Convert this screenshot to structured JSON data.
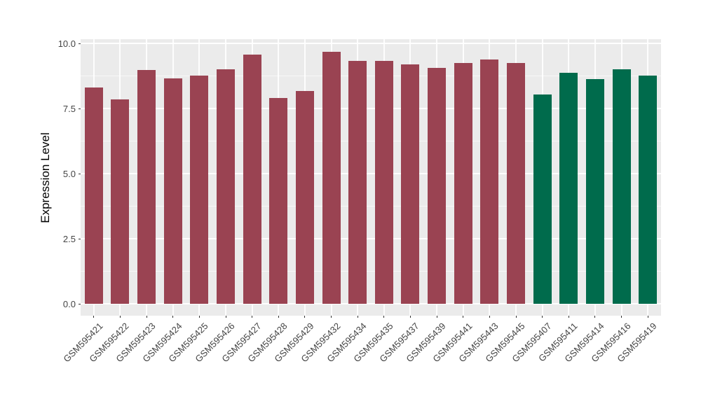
{
  "chart_data": {
    "type": "bar",
    "title": "",
    "xlabel": "",
    "ylabel": "Expression Level",
    "ytick_labels": [
      "0.0",
      "2.5",
      "5.0",
      "7.5",
      "10.0"
    ],
    "ytick_values": [
      0,
      2.5,
      5,
      7.5,
      10
    ],
    "ylim": [
      -0.48,
      10.16
    ],
    "grid": {
      "horizontal_major": true,
      "horizontal_minor": true,
      "vertical_at_categories": true,
      "panel_background": "#EBEBEB",
      "gridline_color": "#FFFFFF"
    },
    "legend": "none",
    "bars": [
      {
        "label": "GSM595421",
        "value": 8.3,
        "group": "group1"
      },
      {
        "label": "GSM595422",
        "value": 7.85,
        "group": "group1"
      },
      {
        "label": "GSM595423",
        "value": 8.97,
        "group": "group1"
      },
      {
        "label": "GSM595424",
        "value": 8.65,
        "group": "group1"
      },
      {
        "label": "GSM595425",
        "value": 8.77,
        "group": "group1"
      },
      {
        "label": "GSM595426",
        "value": 9.0,
        "group": "group1"
      },
      {
        "label": "GSM595427",
        "value": 9.57,
        "group": "group1"
      },
      {
        "label": "GSM595428",
        "value": 7.9,
        "group": "group1"
      },
      {
        "label": "GSM595429",
        "value": 8.17,
        "group": "group1"
      },
      {
        "label": "GSM595432",
        "value": 9.67,
        "group": "group1"
      },
      {
        "label": "GSM595434",
        "value": 9.32,
        "group": "group1"
      },
      {
        "label": "GSM595435",
        "value": 9.32,
        "group": "group1"
      },
      {
        "label": "GSM595437",
        "value": 9.19,
        "group": "group1"
      },
      {
        "label": "GSM595439",
        "value": 9.06,
        "group": "group1"
      },
      {
        "label": "GSM595441",
        "value": 9.25,
        "group": "group1"
      },
      {
        "label": "GSM595443",
        "value": 9.37,
        "group": "group1"
      },
      {
        "label": "GSM595445",
        "value": 9.26,
        "group": "group1"
      },
      {
        "label": "GSM595407",
        "value": 8.04,
        "group": "group2"
      },
      {
        "label": "GSM595411",
        "value": 8.87,
        "group": "group2"
      },
      {
        "label": "GSM595414",
        "value": 8.62,
        "group": "group2"
      },
      {
        "label": "GSM595416",
        "value": 9.0,
        "group": "group2"
      },
      {
        "label": "GSM595419",
        "value": 8.77,
        "group": "group2"
      }
    ],
    "colors": {
      "group1": "#9A4352",
      "group2": "#006B4C",
      "panel_bg": "#EBEBEB",
      "grid_major": "#FFFFFF",
      "grid_minor": "#F5F5F5",
      "axis_text": "#444444",
      "tick_mark": "#333333",
      "axis_title": "#000000",
      "figure_bg": "#FFFFFF"
    }
  }
}
